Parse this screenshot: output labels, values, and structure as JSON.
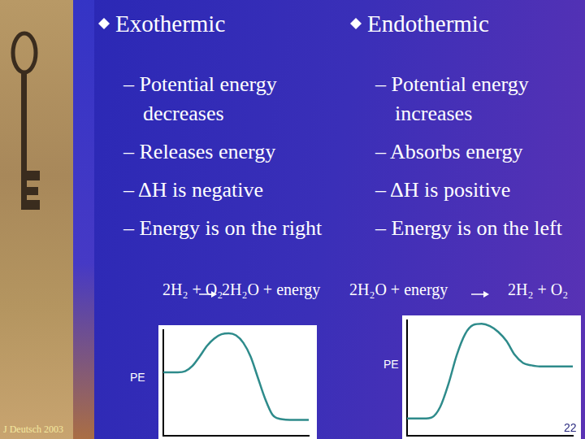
{
  "slide": {
    "columns": [
      {
        "heading": "Exothermic",
        "points": [
          "– Potential energy decreases",
          "– Releases energy",
          "– ΔH is negative",
          "– Energy is on the right"
        ],
        "equation": {
          "reactants": "2H₂ + O₂",
          "products": "2H₂O + energy"
        }
      },
      {
        "heading": "Endothermic",
        "points": [
          "– Potential energy increases",
          "– Absorbs energy",
          "– ΔH is positive",
          "– Energy is on the left"
        ],
        "equation": {
          "reactants": "2H₂O + energy",
          "products": "2H₂ + O₂"
        }
      }
    ],
    "footer": "J Deutsch 2003",
    "page_number": 22
  },
  "chart_data": [
    {
      "type": "line",
      "y_label": "PE",
      "color": "#2e8b8b",
      "grid": false,
      "tick_labels": false,
      "x": [
        0,
        1,
        1.5,
        2,
        2.5,
        3,
        3.5,
        4,
        4.5,
        5,
        5.5,
        6,
        6.5,
        7,
        7.5,
        8,
        9,
        10
      ],
      "values": [
        6,
        6,
        6.1,
        6.6,
        7.5,
        8.5,
        9.2,
        9.6,
        9.7,
        9.5,
        8.8,
        7.5,
        5.5,
        3.5,
        2,
        1.6,
        1.5,
        1.5
      ],
      "xlim": [
        0,
        10
      ],
      "ylim": [
        0,
        10
      ]
    },
    {
      "type": "line",
      "y_label": "PE",
      "color": "#2e8b8b",
      "grid": false,
      "tick_labels": false,
      "x": [
        0,
        1,
        1.5,
        2,
        2.5,
        3,
        3.5,
        4,
        4.5,
        5,
        5.5,
        6,
        6.5,
        7,
        7.5,
        8,
        9,
        10
      ],
      "values": [
        1.5,
        1.5,
        1.6,
        2.5,
        4.5,
        7,
        8.8,
        9.6,
        9.7,
        9.5,
        9,
        8.2,
        7,
        6.3,
        6.1,
        6,
        6,
        6
      ],
      "xlim": [
        0,
        10
      ],
      "ylim": [
        0,
        10
      ]
    }
  ]
}
